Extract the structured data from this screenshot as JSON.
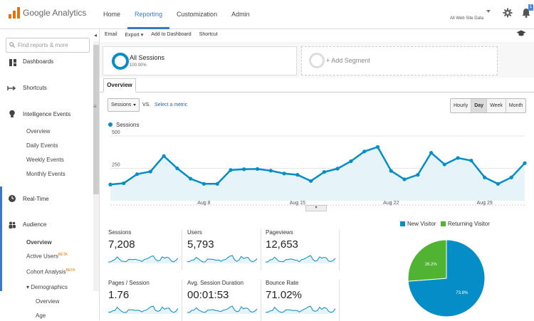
{
  "header": {
    "logo_text": "Google Analytics",
    "nav": [
      "Home",
      "Reporting",
      "Customization",
      "Admin"
    ],
    "active_nav": "Reporting",
    "account_label": "All Web Site Data",
    "notification_count": "1"
  },
  "sidebar": {
    "search_placeholder": "Find reports & more",
    "items": [
      {
        "label": "Dashboards",
        "icon": "dashboard-icon"
      },
      {
        "label": "Shortcuts",
        "icon": "shortcut-icon"
      },
      {
        "label": "Intelligence Events",
        "icon": "lightbulb-icon"
      },
      {
        "label": "Overview"
      },
      {
        "label": "Daily Events"
      },
      {
        "label": "Weekly Events"
      },
      {
        "label": "Monthly Events"
      },
      {
        "label": "Real-Time",
        "icon": "clock-icon"
      },
      {
        "label": "Audience",
        "icon": "people-icon"
      },
      {
        "label": "Overview"
      },
      {
        "label": "Active Users",
        "badge": "BETA"
      },
      {
        "label": "Cohort Analysis",
        "badge": "BETA"
      },
      {
        "label": "▾ Demographics"
      },
      {
        "label": "Overview"
      },
      {
        "label": "Age"
      }
    ]
  },
  "toolbar": {
    "items": [
      "Email",
      "Export ▾",
      "Add to Dashboard",
      "Shortcut"
    ]
  },
  "segments": {
    "active_name": "All Sessions",
    "active_pct": "100.00%",
    "add_label": "+ Add Segment"
  },
  "report": {
    "tab": "Overview",
    "metric": "Sessions",
    "vs": "VS.",
    "select_metric": "Select a metric",
    "granularity": [
      "Hourly",
      "Day",
      "Week",
      "Month"
    ],
    "selected_granularity": "Day"
  },
  "chart_data": [
    {
      "type": "area",
      "series": [
        {
          "name": "Sessions",
          "values": [
            125,
            135,
            205,
            225,
            345,
            250,
            170,
            130,
            130,
            237,
            243,
            245,
            232,
            210,
            200,
            152,
            222,
            248,
            305,
            380,
            415,
            230,
            165,
            200,
            370,
            280,
            330,
            310,
            180,
            130,
            180,
            290
          ]
        }
      ],
      "x": [
        "Aug 1",
        "Aug 2",
        "Aug 3",
        "Aug 4",
        "Aug 5",
        "Aug 6",
        "Aug 7",
        "Aug 8",
        "Aug 9",
        "Aug 10",
        "Aug 11",
        "Aug 12",
        "Aug 13",
        "Aug 14",
        "Aug 15",
        "Aug 16",
        "Aug 17",
        "Aug 18",
        "Aug 19",
        "Aug 20",
        "Aug 21",
        "Aug 22",
        "Aug 23",
        "Aug 24",
        "Aug 25",
        "Aug 26",
        "Aug 27",
        "Aug 28",
        "Aug 29",
        "Aug 30",
        "Aug 31",
        "Sep 1"
      ],
      "x_ticks": [
        "Aug 8",
        "Aug 15",
        "Aug 22",
        "Aug 29"
      ],
      "y_ticks": [
        "250",
        "500"
      ],
      "ylim": [
        0,
        500
      ],
      "color": "#058dc7"
    },
    {
      "type": "pie",
      "categories": [
        "New Visitor",
        "Returning Visitor"
      ],
      "values": [
        73.8,
        26.2
      ],
      "labels": [
        "73.8%",
        "26.2%"
      ],
      "colors": [
        "#058dc7",
        "#50b432"
      ]
    }
  ],
  "metrics": [
    {
      "label": "Sessions",
      "value": "7,208"
    },
    {
      "label": "Users",
      "value": "5,793"
    },
    {
      "label": "Pageviews",
      "value": "12,653"
    },
    {
      "label": "Pages / Session",
      "value": "1.76"
    },
    {
      "label": "Avg. Session Duration",
      "value": "00:01:53"
    },
    {
      "label": "Bounce Rate",
      "value": "71.02%"
    }
  ]
}
